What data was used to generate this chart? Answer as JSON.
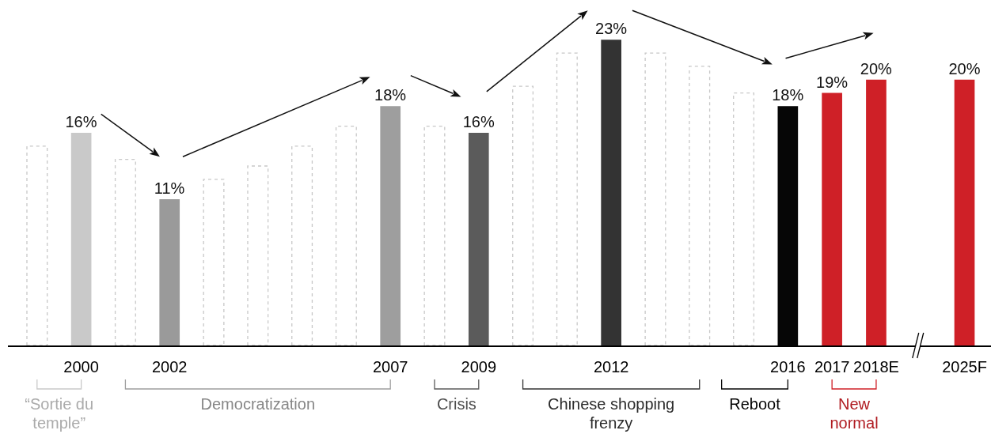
{
  "chart_data": {
    "type": "bar",
    "categories": [
      null,
      "2000",
      null,
      "2002",
      null,
      null,
      null,
      null,
      "2007",
      null,
      "2009",
      null,
      null,
      "2012",
      null,
      null,
      null,
      "2016",
      "2017",
      "2018E",
      null,
      "2025F"
    ],
    "series": [
      {
        "line_style": "dashed",
        "color": "#c8c8c8",
        "values": [
          15,
          null,
          14,
          null,
          12.5,
          13.5,
          15,
          16.5,
          null,
          16.5,
          null,
          19.5,
          22,
          null,
          22,
          21,
          19,
          null,
          null,
          null,
          null,
          null
        ]
      },
      {
        "colors": [
          null,
          "#c9c9c9",
          null,
          "#9a9a9a",
          null,
          null,
          null,
          null,
          "#9e9e9e",
          null,
          "#5b5b5b",
          null,
          null,
          "#333333",
          null,
          null,
          null,
          "#060606",
          "#cf2027",
          "#cf2027",
          null,
          "#cf2027"
        ],
        "values": [
          null,
          16,
          null,
          11,
          null,
          null,
          null,
          null,
          18,
          null,
          16,
          null,
          null,
          23,
          null,
          null,
          null,
          18,
          19,
          20,
          null,
          20
        ],
        "value_labels": [
          null,
          "16%",
          null,
          "11%",
          null,
          null,
          null,
          null,
          "18%",
          null,
          "16%",
          null,
          null,
          "23%",
          null,
          null,
          null,
          "18%",
          "19%",
          "20%",
          null,
          "20%"
        ]
      }
    ],
    "annotations": [
      "“Sortie du temple”",
      "Democratization",
      "Crisis",
      "Chinese shopping frenzy",
      "Reboot",
      "New normal"
    ]
  }
}
